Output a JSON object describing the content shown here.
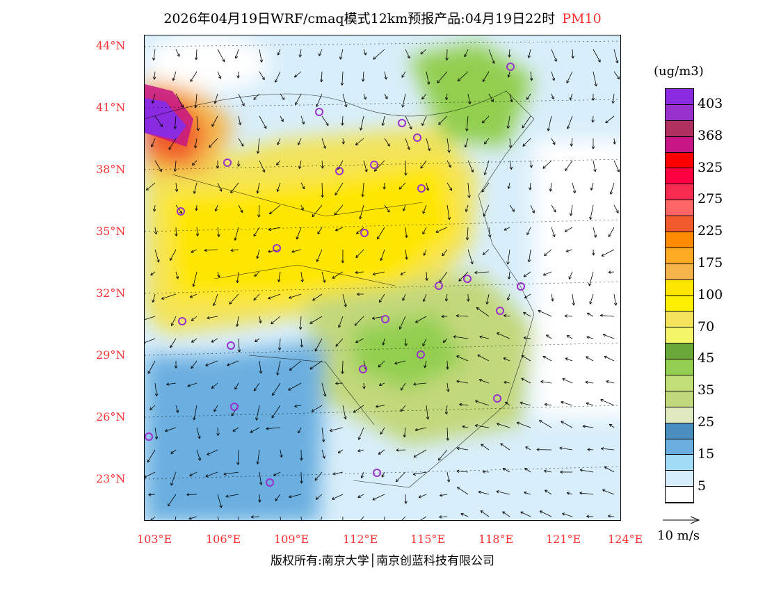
{
  "title": {
    "main": "2026年04月19日WRF/cmaq模式12km预报产品:04月19日22时",
    "species": "PM10"
  },
  "lat_labels": [
    "44°N",
    "41°N",
    "38°N",
    "35°N",
    "32°N",
    "29°N",
    "26°N",
    "23°N"
  ],
  "lon_labels": [
    "103°E",
    "106°E",
    "109°E",
    "112°E",
    "115°E",
    "118°E",
    "121°E",
    "124°E"
  ],
  "colorbar": {
    "unit": "(ug/m3)",
    "colors": [
      "#8a2be2",
      "#9932cc",
      "#b03060",
      "#c71585",
      "#ff0000",
      "#ff0040",
      "#f62b4f",
      "#ff6666",
      "#f05a2c",
      "#ff8c00",
      "#ffaa22",
      "#f5b54a",
      "#ffe600",
      "#fff000",
      "#f2e35a",
      "#f5f56a",
      "#6aa83a",
      "#92cf50",
      "#c3df78",
      "#c2d87c",
      "#e0eac0",
      "#4a8ec0",
      "#6aafe0",
      "#a0dcf5",
      "#d6eefa",
      "#ffffff"
    ],
    "labels": [
      "403",
      "368",
      "325",
      "275",
      "225",
      "175",
      "100",
      "70",
      "45",
      "35",
      "25",
      "15",
      "5"
    ]
  },
  "wind_legend": "10 m/s",
  "footer": "版权所有:南京大学│南京创蓝科技有限公司"
}
